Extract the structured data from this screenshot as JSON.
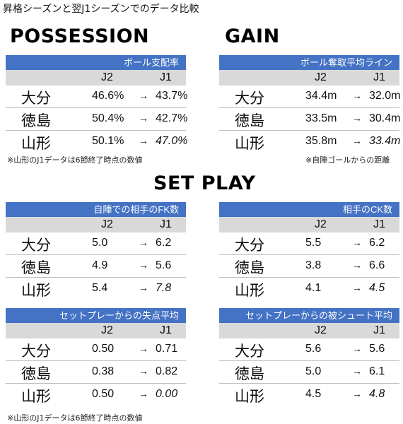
{
  "page_title": "昇格シーズンと翌J1シーズンでのデータ比較",
  "sections": {
    "possession": "POSSESSION",
    "gain": "GAIN",
    "set_play": "SET PLAY"
  },
  "col_j2": "J2",
  "col_j1": "J1",
  "arrow": "→",
  "teams": [
    "大分",
    "徳島",
    "山形"
  ],
  "panels": {
    "possession": {
      "title": "ボール支配率",
      "rows": [
        {
          "team": "大分",
          "j2": "46.6%",
          "j1": "43.7%",
          "italic": false
        },
        {
          "team": "徳島",
          "j2": "50.4%",
          "j1": "42.7%",
          "italic": false
        },
        {
          "team": "山形",
          "j2": "50.1%",
          "j1": "47.0%",
          "italic": true
        }
      ]
    },
    "gain": {
      "title": "ボール奪取平均ライン",
      "rows": [
        {
          "team": "大分",
          "j2": "34.4m",
          "j1": "32.0m",
          "italic": false
        },
        {
          "team": "徳島",
          "j2": "33.5m",
          "j1": "30.4m",
          "italic": false
        },
        {
          "team": "山形",
          "j2": "35.8m",
          "j1": "33.4m",
          "italic": true
        }
      ]
    },
    "fk": {
      "title": "自陣での相手のFK数",
      "rows": [
        {
          "team": "大分",
          "j2": "5.0",
          "j1": "6.2",
          "italic": false
        },
        {
          "team": "徳島",
          "j2": "4.9",
          "j1": "5.6",
          "italic": false
        },
        {
          "team": "山形",
          "j2": "5.4",
          "j1": "7.8",
          "italic": true
        }
      ]
    },
    "ck": {
      "title": "相手のCK数",
      "rows": [
        {
          "team": "大分",
          "j2": "5.5",
          "j1": "6.2",
          "italic": false
        },
        {
          "team": "徳島",
          "j2": "3.8",
          "j1": "6.6",
          "italic": false
        },
        {
          "team": "山形",
          "j2": "4.1",
          "j1": "4.5",
          "italic": true
        }
      ]
    },
    "setplay_goals_against": {
      "title": "セットプレーからの失点平均",
      "rows": [
        {
          "team": "大分",
          "j2": "0.50",
          "j1": "0.71",
          "italic": false
        },
        {
          "team": "徳島",
          "j2": "0.38",
          "j1": "0.82",
          "italic": false
        },
        {
          "team": "山形",
          "j2": "0.50",
          "j1": "0.00",
          "italic": true
        }
      ]
    },
    "setplay_shots_against": {
      "title": "セットプレーからの被シュート平均",
      "rows": [
        {
          "team": "大分",
          "j2": "5.6",
          "j1": "5.6",
          "italic": false
        },
        {
          "team": "徳島",
          "j2": "5.0",
          "j1": "6.1",
          "italic": false
        },
        {
          "team": "山形",
          "j2": "4.5",
          "j1": "4.8",
          "italic": true
        }
      ]
    }
  },
  "notes": {
    "yamagata_note_top": "※山形のJ1データは6節終了時点の数値",
    "gain_note": "※自陣ゴールからの距離",
    "yamagata_note_bottom": "※山形のJ1データは6節終了時点の数値"
  }
}
